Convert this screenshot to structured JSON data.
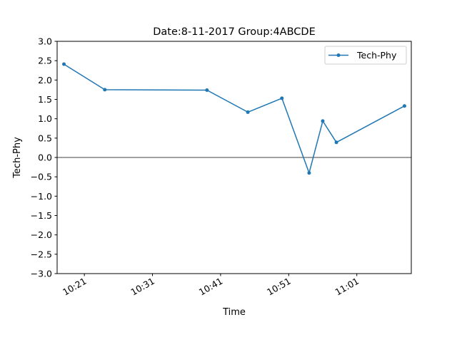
{
  "chart_data": {
    "type": "line",
    "title": "Date:8-11-2017 Group:4ABCDE",
    "xlabel": "Time",
    "ylabel": "Tech-Phy",
    "ylim": [
      -3.0,
      3.0
    ],
    "xlim": [
      "10:17",
      "11:09"
    ],
    "x_tick_labels": [
      "10:21",
      "10:31",
      "10:41",
      "10:51",
      "11:01"
    ],
    "y_tick_labels": [
      "3.0",
      "2.5",
      "2.0",
      "1.5",
      "1.0",
      "0.5",
      "0.0",
      "−0.5",
      "−1.0",
      "−1.5",
      "−2.0",
      "−2.5",
      "−3.0"
    ],
    "reference_line_y": 0.0,
    "legend": {
      "position": "top-right"
    },
    "grid": false,
    "series": [
      {
        "name": "Tech-Phy",
        "color": "#1f77b4",
        "marker": "point",
        "x": [
          "10:18",
          "10:24",
          "10:39",
          "10:45",
          "10:50",
          "10:54",
          "10:56",
          "10:58",
          "11:08"
        ],
        "values": [
          2.41,
          1.75,
          1.74,
          1.17,
          1.53,
          -0.4,
          0.94,
          0.39,
          1.33
        ]
      }
    ]
  }
}
